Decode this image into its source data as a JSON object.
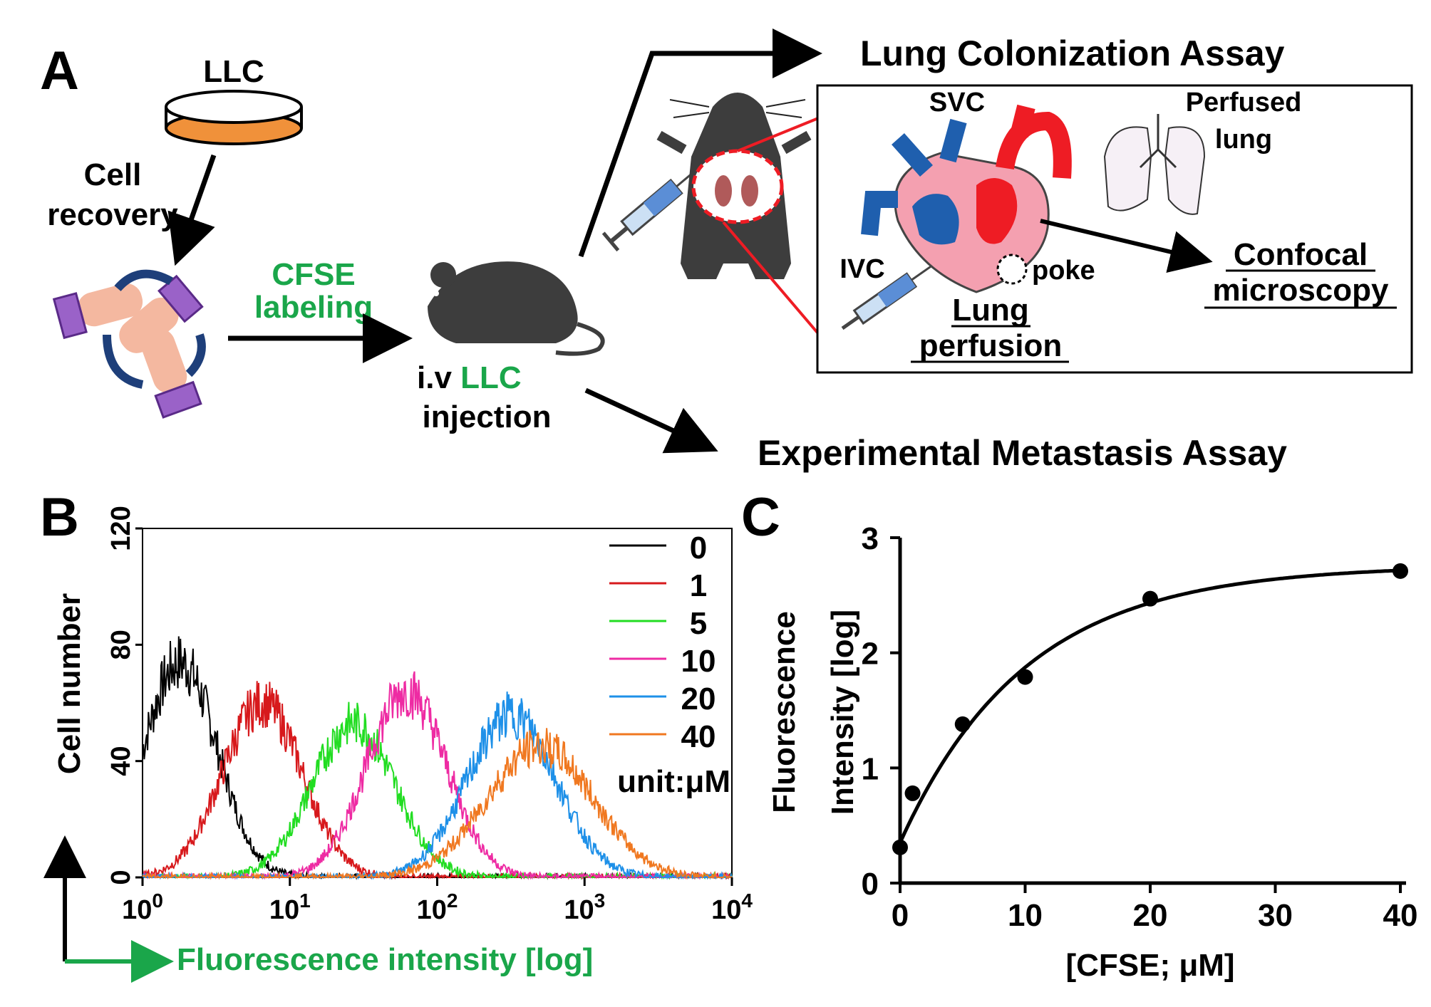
{
  "panel_a": {
    "letter": "A",
    "dish_label": "LLC",
    "cell_recovery": [
      "Cell",
      "recovery"
    ],
    "cfse_labeling": [
      "CFSE",
      "labeling"
    ],
    "injection_prefix": "i.v ",
    "injection_cells": "LLC",
    "injection_word": "injection",
    "lung_colonization": "Lung Colonization Assay",
    "svc": "SVC",
    "ivc": "IVC",
    "poke": "poke",
    "perfused_lung": [
      "Perfused",
      "lung"
    ],
    "lung_perfusion": [
      "Lung",
      "perfusion"
    ],
    "confocal": [
      "Confocal",
      "microscopy"
    ],
    "experimental_metastasis": "Experimental Metastasis Assay"
  },
  "colors": {
    "accent_green": "#1aa64a",
    "vein_blue": "#1f5fae",
    "artery_red": "#ee1c24",
    "heart_pink": "#f4a0b0",
    "dish_orange": "#f0913a"
  },
  "chart_data": [
    {
      "panel": "B",
      "type": "line",
      "title": "",
      "xlabel": "Fluorescence intensity [log]",
      "ylabel": "Cell number",
      "x_scale": "log",
      "xlim": [
        1,
        10000
      ],
      "ylim": [
        0,
        120
      ],
      "x_tick_base": "10",
      "x_tick_exponents": [
        "0",
        "1",
        "2",
        "3",
        "4"
      ],
      "y_ticks": [
        "0",
        "40",
        "80",
        "120"
      ],
      "legend_title": "unit:μM",
      "legend_position": "top-right",
      "grid": false,
      "series": [
        {
          "name": "0",
          "color": "#000000",
          "peak_x": 1.8,
          "peak_y": 74,
          "log_width": 0.25
        },
        {
          "name": "1",
          "color": "#d7191c",
          "peak_x": 6.5,
          "peak_y": 60,
          "log_width": 0.27
        },
        {
          "name": "5",
          "color": "#22dd22",
          "peak_x": 27,
          "peak_y": 53,
          "log_width": 0.28
        },
        {
          "name": "10",
          "color": "#ee2ba3",
          "peak_x": 62,
          "peak_y": 64,
          "log_width": 0.27
        },
        {
          "name": "20",
          "color": "#1e90e8",
          "peak_x": 320,
          "peak_y": 56,
          "log_width": 0.3
        },
        {
          "name": "40",
          "color": "#f07820",
          "peak_x": 500,
          "peak_y": 45,
          "log_width": 0.36
        }
      ]
    },
    {
      "panel": "C",
      "type": "scatter",
      "title": "",
      "xlabel": "[CFSE; μM]",
      "ylabel": [
        "Fluorescence",
        "Intensity [log]"
      ],
      "xlim": [
        0,
        40
      ],
      "ylim": [
        0,
        3
      ],
      "x_ticks": [
        "0",
        "10",
        "20",
        "30",
        "40"
      ],
      "y_ticks": [
        "0",
        "1",
        "2",
        "3"
      ],
      "grid": false,
      "points": [
        {
          "x": 0,
          "y": 0.31
        },
        {
          "x": 1,
          "y": 0.78
        },
        {
          "x": 5,
          "y": 1.38
        },
        {
          "x": 10,
          "y": 1.79
        },
        {
          "x": 20,
          "y": 2.47
        },
        {
          "x": 40,
          "y": 2.71
        }
      ],
      "fit": {
        "model": "one-phase association",
        "y0": 0.35,
        "plateau": 2.76,
        "k": 0.1
      }
    }
  ]
}
